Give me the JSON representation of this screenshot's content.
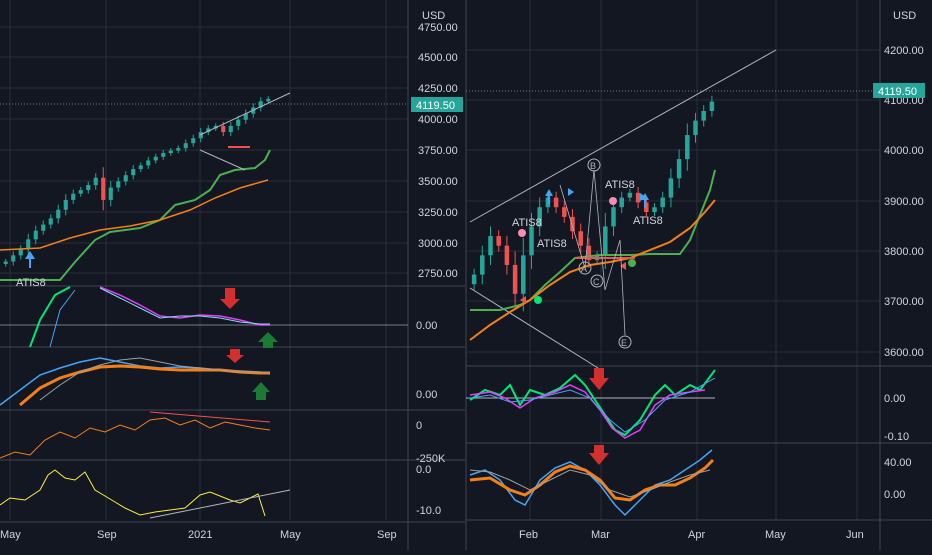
{
  "currency_label": "USD",
  "colors": {
    "background": "#131722",
    "up": "#26a69a",
    "down": "#ef5350",
    "green_line": "#4caf50",
    "orange_line": "#f57f17",
    "price_tag": "#26a69a",
    "arrow_red": "#d32f2f",
    "arrow_green": "#1b7a34",
    "arrow_blue": "#42a5f5"
  },
  "left_panel": {
    "price_tag": "4119.50",
    "price_axis": [
      "4750.00",
      "4500.00",
      "4250.00",
      "4000.00",
      "3750.00",
      "3500.00",
      "3250.00",
      "3000.00",
      "2750.00"
    ],
    "osc1_axis": [
      "0.00"
    ],
    "osc2_axis": [
      "0.00"
    ],
    "osc3_axis": [
      "0",
      "-250K"
    ],
    "osc4_axis": [
      "0.0",
      "-10.0"
    ],
    "time_axis": [
      "May",
      "Sep",
      "2021",
      "May",
      "Sep"
    ],
    "annotations": [
      "ATIS8"
    ]
  },
  "right_panel": {
    "price_tag": "4119.50",
    "price_axis": [
      "4200.00",
      "4100.00",
      "4000.00",
      "3900.00",
      "3800.00",
      "3700.00",
      "3600.00"
    ],
    "osc1_axis": [
      "0.00",
      "-0.10"
    ],
    "osc2_axis": [
      "40.00",
      "0.00"
    ],
    "time_axis": [
      "Feb",
      "Mar",
      "Apr",
      "May",
      "Jun"
    ],
    "annotations": [
      "ATIS8",
      "ATIS8",
      "ATIS8",
      "ATIS8"
    ],
    "waves": [
      "B",
      "A",
      "C",
      "E"
    ]
  },
  "chart_data": [
    {
      "type": "candlestick",
      "panel": "left",
      "series": [
        {
          "name": "",
          "values": [
            2800,
            2850,
            2900,
            2980,
            3050,
            3100,
            3150,
            3220,
            3300,
            3350,
            3380,
            3420,
            3480,
            3300,
            3400,
            3450,
            3500,
            3550,
            3580,
            3620,
            3650,
            3680,
            3700,
            3720,
            3760,
            3800,
            3850,
            3880,
            3900,
            3850,
            3900,
            3950,
            4000,
            4050,
            4100,
            4119.5
          ]
        }
      ],
      "ylim": [
        2650,
        4800
      ]
    },
    {
      "type": "candlestick",
      "panel": "right",
      "series": [
        {
          "name": "",
          "values": [
            3760,
            3800,
            3840,
            3820,
            3780,
            3720,
            3800,
            3860,
            3900,
            3920,
            3900,
            3880,
            3850,
            3820,
            3790,
            3800,
            3860,
            3900,
            3920,
            3930,
            3910,
            3890,
            3900,
            3920,
            3960,
            4000,
            4050,
            4080,
            4100,
            4119.5
          ]
        }
      ],
      "ylim": [
        3570,
        4260
      ]
    }
  ]
}
